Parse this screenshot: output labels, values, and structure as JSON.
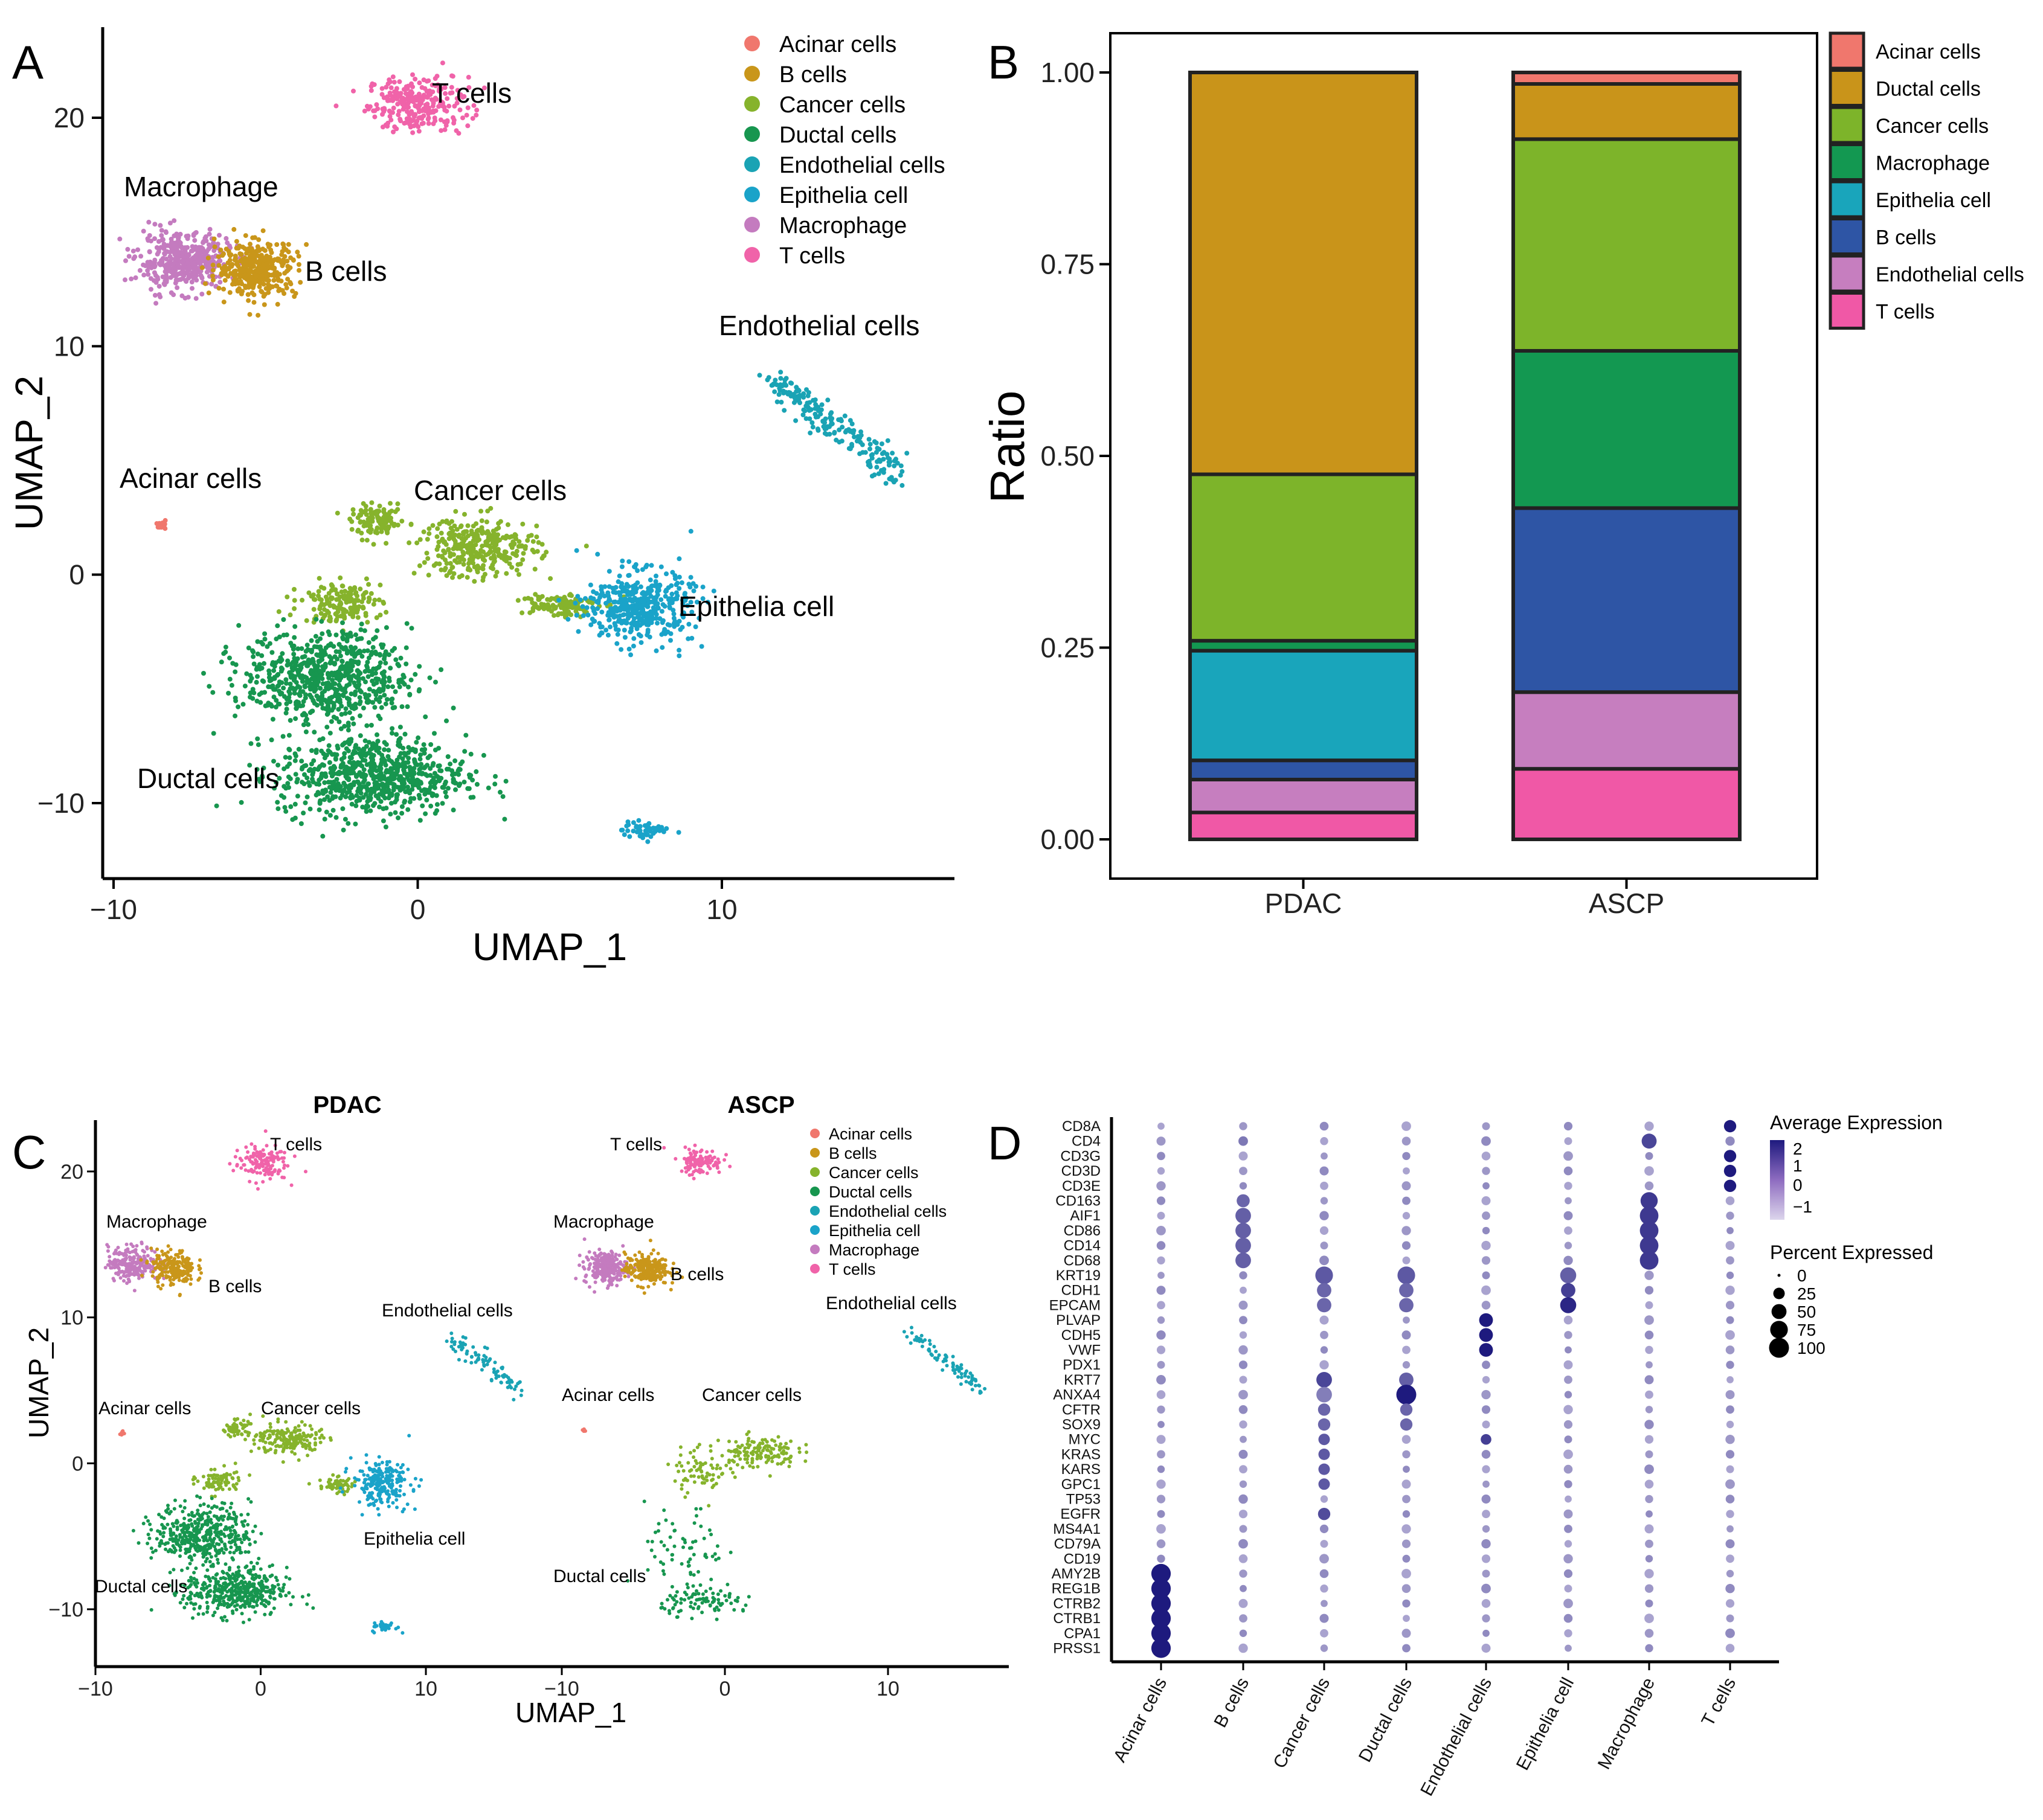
{
  "colors": {
    "Acinar cells": "#F0776D",
    "B cells": "#C9961A",
    "Ductal cells": "#C9961A",
    "Cancer cells": "#7DB42A",
    "Macrophage": "#139851",
    "Epithelia cell": "#18A5B8",
    "Endothelial cells": "#C47BBF",
    "T cells": "#F063A9",
    "B cells (panel B)": "#2E55A5",
    "umap": {
      "Acinar cells": "#F0776D",
      "B cells": "#C9961A",
      "Cancer cells": "#86B32C",
      "Ductal cells": "#17964F",
      "Endothelial cells": "#1AA3B4",
      "Epithelia cell": "#1AA3C9",
      "Macrophage": "#C47BBF",
      "T cells": "#F063A9"
    }
  },
  "panel_A": {
    "letter": "A",
    "xlabel": "UMAP_1",
    "ylabel": "UMAP_2",
    "xticks": [
      "−10",
      "0",
      "10"
    ],
    "yticks": [
      "20",
      "10",
      "0",
      "−10"
    ],
    "legend": [
      "Acinar cells",
      "B cells",
      "Cancer cells",
      "Ductal cells",
      "Endothelial cells",
      "Epithelia cell",
      "Macrophage",
      "T cells"
    ],
    "cluster_labels": [
      {
        "text": "T cells"
      },
      {
        "text": "Macrophage"
      },
      {
        "text": "B cells"
      },
      {
        "text": "Endothelial cells"
      },
      {
        "text": "Acinar cells"
      },
      {
        "text": "Cancer cells"
      },
      {
        "text": "Epithelia cell"
      },
      {
        "text": "Ductal cells"
      }
    ]
  },
  "panel_C": {
    "letter": "C",
    "xlabel": "UMAP_1",
    "ylabel": "UMAP_2",
    "facets": [
      "PDAC",
      "ASCP"
    ],
    "xticks_left": [
      "−10",
      "0",
      "10"
    ],
    "xticks_right": [
      "−10",
      "0",
      "10"
    ],
    "yticks": [
      "20",
      "10",
      "0",
      "−10"
    ],
    "legend": [
      "Acinar cells",
      "B cells",
      "Cancer cells",
      "Ductal cells",
      "Endothelial cells",
      "Epithelia cell",
      "Macrophage",
      "T cells"
    ],
    "labels_left": [
      "T cells",
      "Macrophage",
      "B cells",
      "Endothelial cells",
      "Acinar cells",
      "Cancer cells",
      "Epithelia cell",
      "Ductal cells"
    ],
    "labels_right": [
      "T cells",
      "Macrophage",
      "B cells",
      "Endothelial cells",
      "Acinar cells",
      "Cancer cells",
      "Ductal cells"
    ]
  },
  "panel_D": {
    "letter": "D",
    "legend_expr_title": "Average Expression",
    "legend_expr_ticks": [
      "2",
      "1",
      "0",
      "−1"
    ],
    "legend_pct_title": "Percent Expressed",
    "legend_pct_ticks": [
      "0",
      "25",
      "50",
      "75",
      "100"
    ]
  },
  "chart_data": [
    {
      "type": "scatter",
      "panel": "A",
      "title": "",
      "xlabel": "UMAP_1",
      "ylabel": "UMAP_2",
      "xlim": [
        -10,
        17
      ],
      "ylim": [
        -13.5,
        24
      ],
      "legend": [
        "Acinar cells",
        "B cells",
        "Cancer cells",
        "Ductal cells",
        "Endothelial cells",
        "Epithelia cell",
        "Macrophage",
        "T cells"
      ],
      "clusters": [
        {
          "name": "T cells",
          "center": [
            0.0,
            20.6
          ],
          "spread": [
            1.5,
            1.1
          ]
        },
        {
          "name": "Macrophage",
          "center": [
            -7.7,
            13.7
          ],
          "spread": [
            1.4,
            1.1
          ]
        },
        {
          "name": "B cells",
          "center": [
            -5.3,
            13.4
          ],
          "spread": [
            1.2,
            1.1
          ]
        },
        {
          "name": "Endothelial cells",
          "center": [
            14.0,
            6.2
          ],
          "spread": [
            2.4,
            1.8
          ]
        },
        {
          "name": "Acinar cells",
          "center": [
            -8.4,
            2.1
          ],
          "spread": [
            0.15,
            0.15
          ]
        },
        {
          "name": "Cancer cells",
          "center": [
            1.5,
            0.5
          ],
          "spread": [
            3.2,
            1.8
          ]
        },
        {
          "name": "Epithelia cell",
          "center": [
            7.3,
            -1.4
          ],
          "spread": [
            1.6,
            1.4
          ]
        },
        {
          "name": "Ductal cells",
          "center": [
            -2.0,
            -6.5
          ],
          "spread": [
            3.2,
            3.0
          ]
        }
      ]
    },
    {
      "type": "bar",
      "panel": "B",
      "title": "",
      "xlabel": "",
      "ylabel": "Ratio",
      "ylim": [
        0,
        1
      ],
      "yticks": [
        "0.00",
        "0.25",
        "0.50",
        "0.75",
        "1.00"
      ],
      "categories": [
        "PDAC",
        "ASCP"
      ],
      "legend": [
        "Acinar cells",
        "Ductal cells",
        "Cancer cells",
        "Macrophage",
        "Epithelia cell",
        "B cells",
        "Endothelial cells",
        "T cells"
      ],
      "stack_order_bottom_to_top": [
        "T cells",
        "Endothelial cells",
        "B cells",
        "Epithelia cell",
        "Macrophage",
        "Cancer cells",
        "Ductal cells",
        "Acinar cells"
      ],
      "series": [
        {
          "name": "T cells",
          "color": "#F058A6",
          "values": [
            0.035,
            0.092
          ]
        },
        {
          "name": "Endothelial cells",
          "color": "#C67EBF",
          "values": [
            0.043,
            0.1
          ]
        },
        {
          "name": "B cells",
          "color": "#2E55A5",
          "values": [
            0.025,
            0.24
          ]
        },
        {
          "name": "Epithelia cell",
          "color": "#19A5BB",
          "values": [
            0.143,
            0.0
          ]
        },
        {
          "name": "Macrophage",
          "color": "#139851",
          "values": [
            0.013,
            0.205
          ]
        },
        {
          "name": "Cancer cells",
          "color": "#7DB42A",
          "values": [
            0.217,
            0.276
          ]
        },
        {
          "name": "Ductal cells",
          "color": "#C9941A",
          "values": [
            0.524,
            0.072
          ]
        },
        {
          "name": "Acinar cells",
          "color": "#F0776D",
          "values": [
            0.0,
            0.015
          ]
        }
      ]
    },
    {
      "type": "scatter",
      "panel": "C",
      "title": "",
      "facets": [
        "PDAC",
        "ASCP"
      ],
      "xlabel": "UMAP_1",
      "ylabel": "UMAP_2",
      "xlim": [
        -10,
        17
      ],
      "ylim": [
        -13.5,
        24
      ]
    },
    {
      "type": "dot",
      "panel": "D",
      "title": "",
      "genes": [
        "CD8A",
        "CD4",
        "CD3G",
        "CD3D",
        "CD3E",
        "CD163",
        "AIF1",
        "CD86",
        "CD14",
        "CD68",
        "KRT19",
        "CDH1",
        "EPCAM",
        "PLVAP",
        "CDH5",
        "VWF",
        "PDX1",
        "KRT7",
        "ANXA4",
        "CFTR",
        "SOX9",
        "MYC",
        "KRAS",
        "KARS",
        "GPC1",
        "TP53",
        "EGFR",
        "MS4A1",
        "CD79A",
        "CD19",
        "AMY2B",
        "REG1B",
        "CTRB2",
        "CTRB1",
        "CPA1",
        "PRSS1"
      ],
      "cell_types": [
        "Acinar cells",
        "B cells",
        "Cancer cells",
        "Ductal cells",
        "Endothelial cells",
        "Epithelia cell",
        "Macrophage",
        "T cells"
      ],
      "legend_expression_range": [
        -1,
        2
      ],
      "legend_percent": [
        0,
        25,
        50,
        75,
        100
      ]
    }
  ]
}
